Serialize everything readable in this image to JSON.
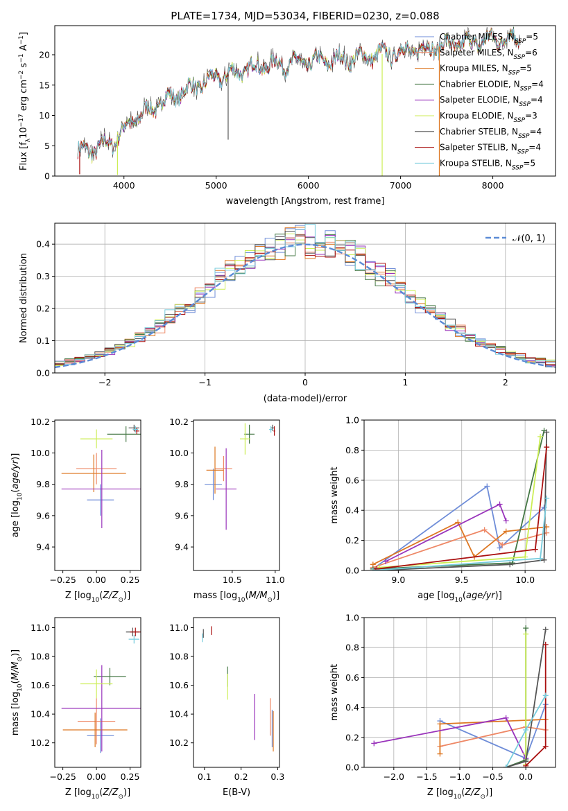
{
  "figure": {
    "title": "PLATE=1734, MJD=53034, FIBERID=0230, z=0.088"
  },
  "models": [
    {
      "name": "Chabrier MILES, N$_{SSP}$=5",
      "label_main": "Chabrier MILES, N",
      "label_sub": "SSP",
      "label_tail": "=5",
      "color": "#6f8dd8"
    },
    {
      "name": "Salpeter MILES, N$_{SSP}$=6",
      "label_main": "Salpeter MILES, N",
      "label_sub": "SSP",
      "label_tail": "=6",
      "color": "#ee8866"
    },
    {
      "name": "Kroupa MILES, N$_{SSP}$=5",
      "label_main": "Kroupa MILES, N",
      "label_sub": "SSP",
      "label_tail": "=5",
      "color": "#dd7722"
    },
    {
      "name": "Chabrier ELODIE, N$_{SSP}$=4",
      "label_main": "Chabrier ELODIE, N",
      "label_sub": "SSP",
      "label_tail": "=4",
      "color": "#447744"
    },
    {
      "name": "Salpeter ELODIE, N$_{SSP}$=4",
      "label_main": "Salpeter ELODIE, N",
      "label_sub": "SSP",
      "label_tail": "=4",
      "color": "#9933bb"
    },
    {
      "name": "Kroupa ELODIE, N$_{SSP}$=3",
      "label_main": "Kroupa ELODIE, N",
      "label_sub": "SSP",
      "label_tail": "=3",
      "color": "#ccee55"
    },
    {
      "name": "Chabrier STELIB, N$_{SSP}$=4",
      "label_main": "Chabrier STELIB, N",
      "label_sub": "SSP",
      "label_tail": "=4",
      "color": "#555555"
    },
    {
      "name": "Salpeter STELIB, N$_{SSP}$=4",
      "label_main": "Salpeter STELIB, N",
      "label_sub": "SSP",
      "label_tail": "=4",
      "color": "#aa1111"
    },
    {
      "name": "Kroupa STELIB, N$_{SSP}$=5",
      "label_main": "Kroupa STELIB, N",
      "label_sub": "SSP",
      "label_tail": "=5",
      "color": "#77ccdd"
    }
  ],
  "chart_data": [
    {
      "id": "spectrum",
      "type": "line",
      "xlabel": "wavelength [Angstrom, rest frame]",
      "ylabel_parts": [
        "Flux [f",
        "λ",
        "10",
        "−17",
        " erg cm",
        "−2",
        " s",
        "−1",
        " A",
        "−1",
        "]"
      ],
      "xlim": [
        3250,
        8680
      ],
      "ylim": [
        0,
        24.8
      ],
      "xticks": [
        4000,
        5000,
        6000,
        7000,
        8000
      ],
      "yticks": [
        0,
        5,
        10,
        15,
        20
      ],
      "grid": false,
      "legend_placement": "top-right",
      "continuum_knots": {
        "x": [
          3500,
          3700,
          3900,
          4100,
          4500,
          5000,
          5500,
          6000,
          6500,
          7000,
          7500,
          8000,
          8400
        ],
        "y": [
          4.0,
          4.5,
          6.0,
          9.3,
          13.0,
          16.2,
          18.3,
          18.8,
          19.5,
          20.5,
          21.5,
          22.5,
          23.0
        ]
      },
      "spikes": [
        {
          "x": 3520,
          "y": 0.3
        },
        {
          "x": 3930,
          "y": 0.2
        },
        {
          "x": 5130,
          "y": 6.0
        },
        {
          "x": 6800,
          "y": 0.0
        },
        {
          "x": 7420,
          "y": 0.0
        }
      ]
    },
    {
      "id": "residuals",
      "type": "histogram",
      "xlabel": "(data-model)/error",
      "ylabel": "Normed distribution",
      "xlim": [
        -2.5,
        2.5
      ],
      "ylim": [
        0,
        0.465
      ],
      "xticks": [
        -2,
        -1,
        0,
        1,
        2
      ],
      "yticks": [
        0.0,
        0.1,
        0.2,
        0.3,
        0.4
      ],
      "grid": true,
      "legend_placement": "top-right",
      "reference_curve": {
        "name": "𝒩(0, 1)",
        "mean": 0,
        "sd": 1,
        "color": "#5b8bd6"
      },
      "bin_edges": [
        -2.5,
        2.5
      ],
      "bin_count": 50
    },
    {
      "id": "age_vs_Z",
      "type": "errorbar",
      "xlabel": "Z [log10(Z/Z⊙)]",
      "ylabel": "age [log10(age/yr)]",
      "xlim": [
        -0.31,
        0.33
      ],
      "ylim": [
        9.25,
        10.21
      ],
      "xticks": [
        -0.25,
        0.0,
        0.25
      ],
      "yticks": [
        9.4,
        9.6,
        9.8,
        10.0,
        10.2
      ],
      "points": [
        {
          "model": 0,
          "x": 0.03,
          "y": 9.7,
          "xerr": 0.1,
          "yerr": 0.1
        },
        {
          "model": 1,
          "x": 0.0,
          "y": 9.9,
          "xerr": 0.15,
          "yerr": 0.1
        },
        {
          "model": 2,
          "x": -0.02,
          "y": 9.87,
          "xerr": 0.24,
          "yerr": 0.12
        },
        {
          "model": 3,
          "x": 0.22,
          "y": 10.12,
          "xerr": 0.14,
          "yerr": 0.05
        },
        {
          "model": 4,
          "x": 0.04,
          "y": 9.77,
          "xerr": 0.3,
          "yerr": 0.25
        },
        {
          "model": 5,
          "x": 0.0,
          "y": 10.09,
          "xerr": 0.12,
          "yerr": 0.06
        },
        {
          "model": 6,
          "x": 0.28,
          "y": 10.16,
          "xerr": 0.04,
          "yerr": 0.02
        },
        {
          "model": 7,
          "x": 0.3,
          "y": 10.14,
          "xerr": 0.02,
          "yerr": 0.02
        },
        {
          "model": 8,
          "x": 0.29,
          "y": 10.15,
          "xerr": 0.02,
          "yerr": 0.02
        }
      ]
    },
    {
      "id": "age_vs_mass",
      "type": "errorbar",
      "xlabel": "mass [log10(M/M⊙)]",
      "ylabel": "",
      "xlim": [
        10.05,
        11.05
      ],
      "ylim": [
        9.25,
        10.21
      ],
      "xticks": [
        10.5,
        11.0
      ],
      "yticks": [
        9.4,
        9.6,
        9.8,
        10.0,
        10.2
      ],
      "points": [
        {
          "model": 0,
          "x": 10.28,
          "y": 9.8,
          "xerr": 0.1,
          "yerr": 0.1
        },
        {
          "model": 1,
          "x": 10.4,
          "y": 9.9,
          "xerr": 0.1,
          "yerr": 0.08
        },
        {
          "model": 2,
          "x": 10.3,
          "y": 9.89,
          "xerr": 0.1,
          "yerr": 0.15
        },
        {
          "model": 3,
          "x": 10.7,
          "y": 10.12,
          "xerr": 0.06,
          "yerr": 0.06
        },
        {
          "model": 4,
          "x": 10.43,
          "y": 9.77,
          "xerr": 0.12,
          "yerr": 0.26
        },
        {
          "model": 5,
          "x": 10.65,
          "y": 10.09,
          "xerr": 0.06,
          "yerr": 0.1
        },
        {
          "model": 6,
          "x": 10.97,
          "y": 10.16,
          "xerr": 0.02,
          "yerr": 0.02
        },
        {
          "model": 7,
          "x": 10.99,
          "y": 10.14,
          "xerr": 0.01,
          "yerr": 0.03
        },
        {
          "model": 8,
          "x": 10.95,
          "y": 10.15,
          "xerr": 0.02,
          "yerr": 0.02
        }
      ]
    },
    {
      "id": "mass_weight_vs_age",
      "type": "line",
      "xlabel": "age [log10(age/yr)]",
      "ylabel": "mass weight",
      "xlim": [
        8.73,
        10.24
      ],
      "ylim": [
        0,
        1.0
      ],
      "xticks": [
        9.0,
        9.5,
        10.0
      ],
      "yticks": [
        0.0,
        0.2,
        0.4,
        0.6,
        0.8,
        1.0
      ],
      "grid": true,
      "series": [
        {
          "model": 0,
          "x": [
            8.8,
            9.7,
            9.8,
            10.15
          ],
          "y": [
            0.01,
            0.56,
            0.15,
            0.42
          ]
        },
        {
          "model": 1,
          "x": [
            8.8,
            9.68,
            9.82,
            10.17
          ],
          "y": [
            0.02,
            0.27,
            0.17,
            0.25
          ]
        },
        {
          "model": 2,
          "x": [
            8.8,
            9.47,
            9.6,
            9.85,
            10.17
          ],
          "y": [
            0.04,
            0.32,
            0.09,
            0.26,
            0.29
          ]
        },
        {
          "model": 3,
          "x": [
            8.8,
            9.9,
            10.15
          ],
          "y": [
            0.01,
            0.05,
            0.93
          ]
        },
        {
          "model": 4,
          "x": [
            8.9,
            9.8,
            9.85
          ],
          "y": [
            0.06,
            0.44,
            0.33
          ]
        },
        {
          "model": 5,
          "x": [
            8.85,
            10.0,
            10.12
          ],
          "y": [
            0.02,
            0.09,
            0.89
          ]
        },
        {
          "model": 6,
          "x": [
            8.82,
            9.88,
            10.15,
            10.17
          ],
          "y": [
            0.0,
            0.04,
            0.07,
            0.92
          ]
        },
        {
          "model": 7,
          "x": [
            8.83,
            10.08,
            10.17
          ],
          "y": [
            0.01,
            0.14,
            0.82
          ]
        },
        {
          "model": 8,
          "x": [
            8.8,
            10.12,
            10.17
          ],
          "y": [
            0.0,
            0.08,
            0.48
          ]
        }
      ]
    },
    {
      "id": "mass_vs_Z",
      "type": "errorbar",
      "xlabel": "Z [log10(Z/Z⊙)]",
      "ylabel": "mass [log10(M/M⊙)]",
      "xlim": [
        -0.31,
        0.33
      ],
      "ylim": [
        10.03,
        11.07
      ],
      "xticks": [
        -0.25,
        0.0,
        0.25
      ],
      "yticks": [
        10.2,
        10.4,
        10.6,
        10.8,
        11.0
      ],
      "points": [
        {
          "model": 0,
          "x": 0.03,
          "y": 10.25,
          "xerr": 0.1,
          "yerr": 0.12
        },
        {
          "model": 1,
          "x": 0.0,
          "y": 10.35,
          "xerr": 0.14,
          "yerr": 0.16
        },
        {
          "model": 2,
          "x": -0.01,
          "y": 10.29,
          "xerr": 0.24,
          "yerr": 0.12
        },
        {
          "model": 3,
          "x": 0.1,
          "y": 10.66,
          "xerr": 0.12,
          "yerr": 0.06
        },
        {
          "model": 4,
          "x": 0.04,
          "y": 10.44,
          "xerr": 0.3,
          "yerr": 0.3
        },
        {
          "model": 5,
          "x": 0.0,
          "y": 10.61,
          "xerr": 0.12,
          "yerr": 0.1
        },
        {
          "model": 6,
          "x": 0.27,
          "y": 10.97,
          "xerr": 0.05,
          "yerr": 0.03
        },
        {
          "model": 7,
          "x": 0.29,
          "y": 10.97,
          "xerr": 0.04,
          "yerr": 0.03
        },
        {
          "model": 8,
          "x": 0.28,
          "y": 10.92,
          "xerr": 0.04,
          "yerr": 0.03
        }
      ]
    },
    {
      "id": "mass_vs_EBV",
      "type": "errorbar",
      "xlabel": "E(B-V)",
      "ylabel": "",
      "xlim": [
        0.07,
        0.305
      ],
      "ylim": [
        10.03,
        11.07
      ],
      "xticks": [
        0.1,
        0.2,
        0.3
      ],
      "yticks": [
        10.2,
        10.4,
        10.6,
        10.8,
        11.0
      ],
      "points": [
        {
          "model": 0,
          "x": 0.285,
          "y": 10.3,
          "xerr": 0.0,
          "yerr": 0.13
        },
        {
          "model": 1,
          "x": 0.28,
          "y": 10.38,
          "xerr": 0.0,
          "yerr": 0.13
        },
        {
          "model": 2,
          "x": 0.288,
          "y": 10.28,
          "xerr": 0.0,
          "yerr": 0.14
        },
        {
          "model": 3,
          "x": 0.163,
          "y": 10.66,
          "xerr": 0.0,
          "yerr": 0.07
        },
        {
          "model": 4,
          "x": 0.237,
          "y": 10.38,
          "xerr": 0.0,
          "yerr": 0.16
        },
        {
          "model": 5,
          "x": 0.163,
          "y": 10.59,
          "xerr": 0.0,
          "yerr": 0.09
        },
        {
          "model": 6,
          "x": 0.097,
          "y": 10.96,
          "xerr": 0.0,
          "yerr": 0.03
        },
        {
          "model": 7,
          "x": 0.119,
          "y": 10.98,
          "xerr": 0.0,
          "yerr": 0.03
        },
        {
          "model": 8,
          "x": 0.094,
          "y": 10.93,
          "xerr": 0.0,
          "yerr": 0.03
        }
      ]
    },
    {
      "id": "mass_weight_vs_Z",
      "type": "line",
      "xlabel": "Z [log10(Z/Z⊙)]",
      "ylabel": "mass weight",
      "xlim": [
        -2.45,
        0.45
      ],
      "ylim": [
        0,
        1.0
      ],
      "xticks": [
        -2.0,
        -1.5,
        -1.0,
        -0.5,
        0.0
      ],
      "yticks": [
        0.0,
        0.2,
        0.4,
        0.6,
        0.8,
        1.0
      ],
      "grid": true,
      "series": [
        {
          "model": 0,
          "x": [
            -1.3,
            0.0,
            0.3
          ],
          "y": [
            0.31,
            0.06,
            0.42
          ]
        },
        {
          "model": 1,
          "x": [
            -1.3,
            0.0,
            0.3
          ],
          "y": [
            0.14,
            0.27,
            0.25
          ]
        },
        {
          "model": 2,
          "x": [
            -1.3,
            -1.3,
            0.3
          ],
          "y": [
            0.09,
            0.29,
            0.32
          ]
        },
        {
          "model": 3,
          "x": [
            -0.3,
            0.0,
            0.0
          ],
          "y": [
            0.0,
            0.05,
            0.93
          ]
        },
        {
          "model": 4,
          "x": [
            -2.3,
            -0.3,
            0.0
          ],
          "y": [
            0.16,
            0.33,
            0.06
          ]
        },
        {
          "model": 5,
          "x": [
            0.0,
            0.0,
            0.0
          ],
          "y": [
            0.02,
            0.09,
            0.89
          ]
        },
        {
          "model": 6,
          "x": [
            -0.3,
            0.0,
            0.3
          ],
          "y": [
            0.0,
            0.04,
            0.92
          ]
        },
        {
          "model": 7,
          "x": [
            0.0,
            0.3,
            0.3
          ],
          "y": [
            0.01,
            0.14,
            0.82
          ]
        },
        {
          "model": 8,
          "x": [
            -0.3,
            0.0,
            0.3
          ],
          "y": [
            0.0,
            0.25,
            0.48
          ]
        }
      ]
    }
  ]
}
